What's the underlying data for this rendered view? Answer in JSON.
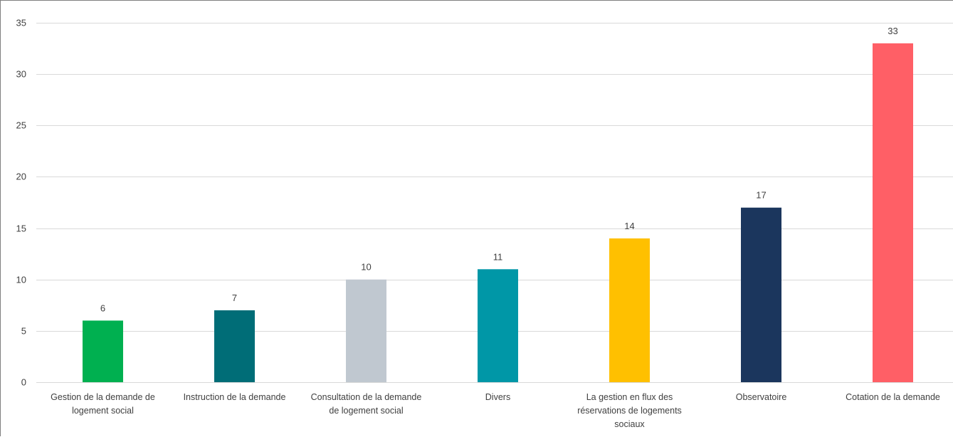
{
  "chart_data": {
    "type": "bar",
    "title": "",
    "xlabel": "",
    "ylabel": "",
    "ylim": [
      0,
      35
    ],
    "yticks": [
      0,
      5,
      10,
      15,
      20,
      25,
      30,
      35
    ],
    "grid": true,
    "legend": "none",
    "data_labels": true,
    "categories": [
      "Gestion de la demande de logement social",
      "Instruction de la demande",
      "Consultation de la demande de logement social",
      "Divers",
      "La gestion en flux des réservations de logements sociaux",
      "Observatoire",
      "Cotation de la demande"
    ],
    "values": [
      6,
      7,
      10,
      11,
      14,
      17,
      33
    ],
    "colors": [
      "#00b050",
      "#006d77",
      "#c0c8d0",
      "#0097a7",
      "#ffc000",
      "#1b365d",
      "#ff5f66"
    ]
  }
}
